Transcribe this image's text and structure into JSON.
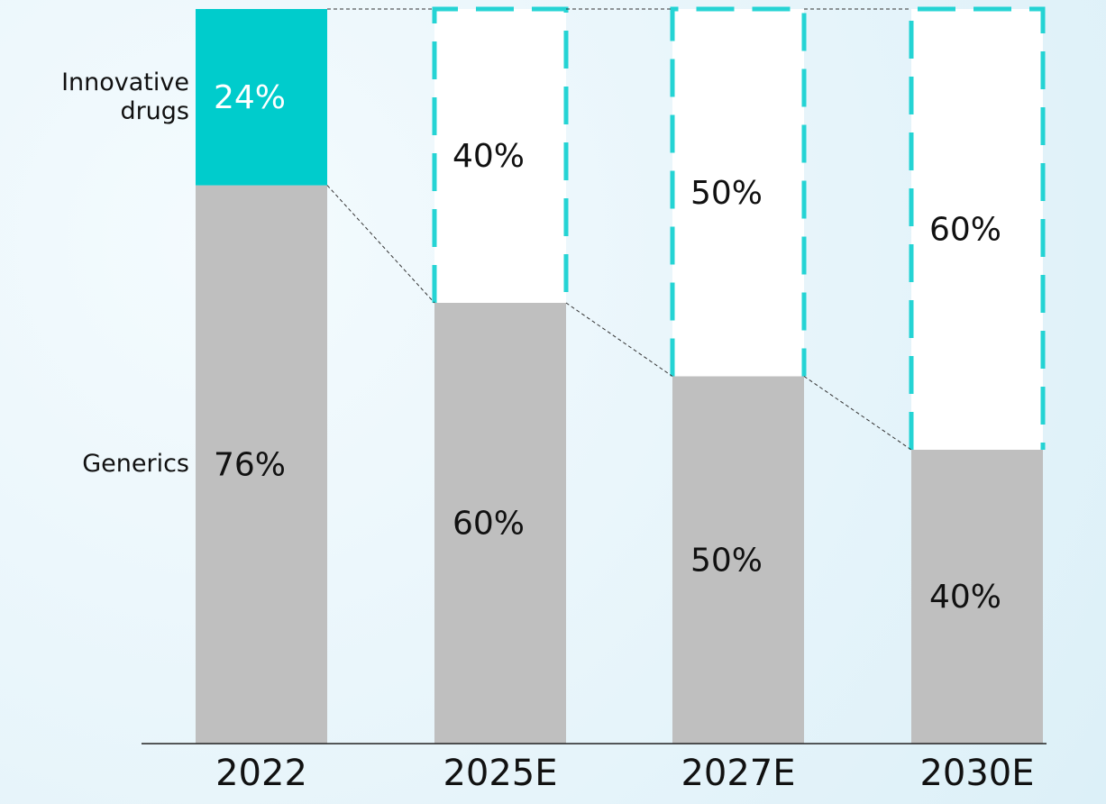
{
  "chart_data": {
    "type": "stacked-bar",
    "categories": [
      "2022",
      "2025E",
      "2027E",
      "2030E"
    ],
    "ylim": [
      0,
      100
    ],
    "series": [
      {
        "name": "Generics",
        "color": "#bfbfbf",
        "values": [
          76,
          60,
          50,
          40
        ],
        "value_labels": [
          "76%",
          "60%",
          "50%",
          "40%"
        ]
      },
      {
        "name": "Innovative drugs",
        "color": "#00cccc",
        "values": [
          24,
          40,
          50,
          60
        ],
        "value_labels": [
          "24%",
          "40%",
          "50%",
          "60%"
        ],
        "dashed": [
          false,
          true,
          true,
          true
        ]
      }
    ]
  }
}
